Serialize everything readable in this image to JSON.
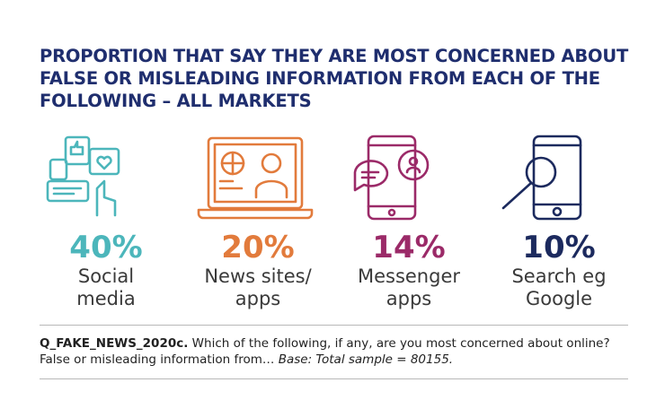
{
  "title": "PROPORTION THAT SAY THEY ARE MOST CONCERNED ABOUT FALSE OR MISLEADING INFORMATION FROM EACH OF THE FOLLOWING – ALL MARKETS",
  "items": [
    {
      "percent": "40%",
      "label": [
        "Social",
        "media"
      ],
      "color": "#4cb6bb"
    },
    {
      "percent": "20%",
      "label": [
        "News sites/",
        "apps"
      ],
      "color": "#e27b3c"
    },
    {
      "percent": "14%",
      "label": [
        "Messenger",
        "apps"
      ],
      "color": "#9b2a68"
    },
    {
      "percent": "10%",
      "label": [
        "Search eg",
        "Google"
      ],
      "color": "#1c2a5e"
    }
  ],
  "footnote": {
    "code": "Q_FAKE_NEWS_2020c.",
    "question": "Which of the following, if any, are you most concerned about online? False or misleading information from…",
    "base": "Base: Total sample = 80155."
  }
}
